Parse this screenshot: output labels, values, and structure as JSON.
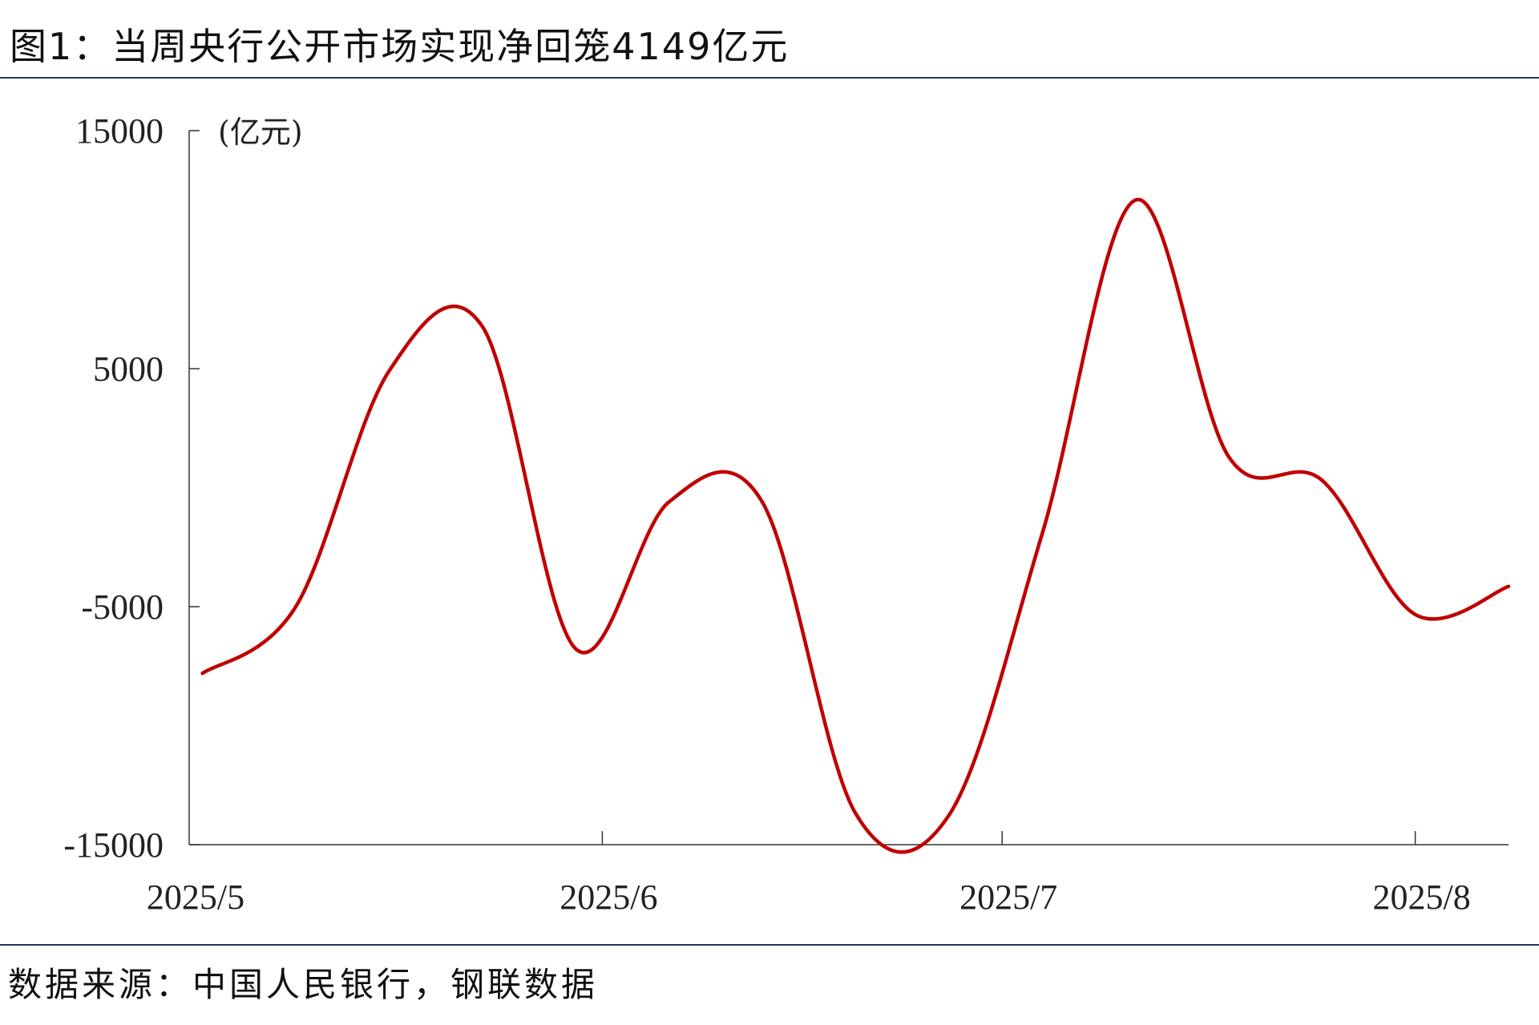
{
  "title": "图1：当周央行公开市场实现净回笼4149亿元",
  "source": "数据来源：中国人民银行，钢联数据",
  "chart_data": {
    "type": "line",
    "title": "图1：当周央行公开市场实现净回笼4149亿元",
    "unit_label": "(亿元)",
    "xlabel": "",
    "ylabel": "",
    "ylim": [
      -15000,
      15000
    ],
    "yticks": [
      -15000,
      -5000,
      5000,
      15000
    ],
    "ytick_labels": [
      "-15000",
      "-5000",
      "5000",
      "15000"
    ],
    "xlim": [
      "2025-05-01",
      "2025-08-08"
    ],
    "xticks": [
      "2025-05-01",
      "2025-06-01",
      "2025-07-01",
      "2025-08-01"
    ],
    "xtick_labels": [
      "2025/5",
      "2025/6",
      "2025/7",
      "2025/8"
    ],
    "grid": false,
    "legend": "none",
    "line_color": "#c00000",
    "x": [
      "2025-05-02",
      "2025-05-09",
      "2025-05-16",
      "2025-05-23",
      "2025-05-30",
      "2025-06-06",
      "2025-06-13",
      "2025-06-20",
      "2025-06-27",
      "2025-07-04",
      "2025-07-11",
      "2025-07-18",
      "2025-07-25",
      "2025-08-01",
      "2025-08-08"
    ],
    "values": [
      -7800,
      -5000,
      4900,
      6770,
      -6770,
      -600,
      -600,
      -13680,
      -13770,
      -1950,
      12080,
      1300,
      310,
      -5330,
      -4149
    ]
  }
}
